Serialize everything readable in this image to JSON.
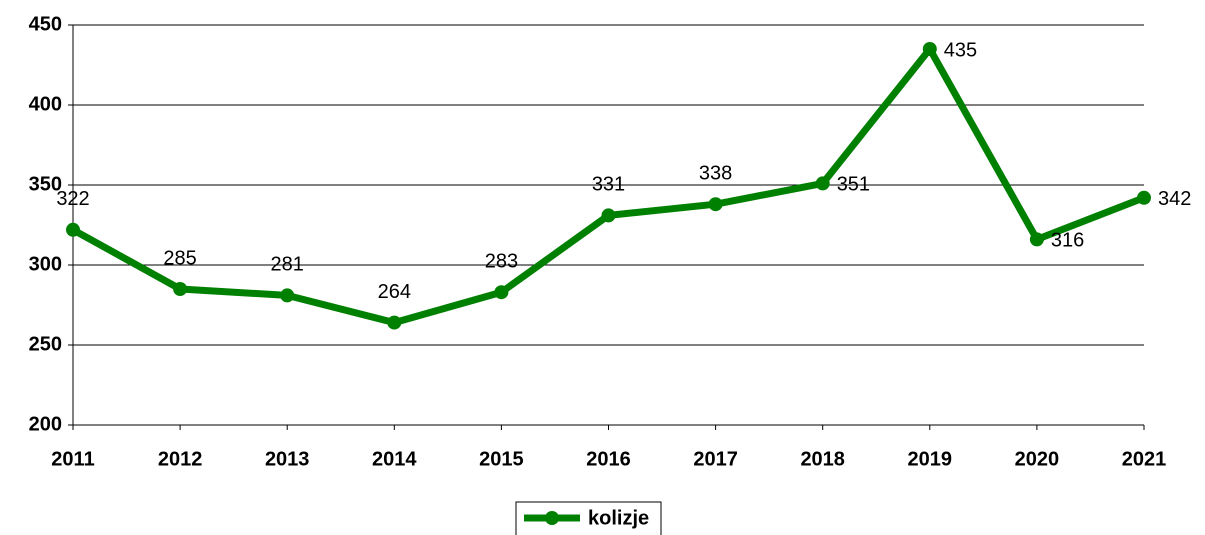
{
  "chart_data": {
    "type": "line",
    "categories": [
      "2011",
      "2012",
      "2013",
      "2014",
      "2015",
      "2016",
      "2017",
      "2018",
      "2019",
      "2020",
      "2021"
    ],
    "series": [
      {
        "name": "kolizje",
        "color": "#008000",
        "values": [
          322,
          285,
          281,
          264,
          283,
          331,
          338,
          351,
          435,
          316,
          342
        ]
      }
    ],
    "ylim": [
      200,
      450
    ],
    "yticks": [
      200,
      250,
      300,
      350,
      400,
      450
    ],
    "grid": true,
    "legend": "bottom"
  }
}
